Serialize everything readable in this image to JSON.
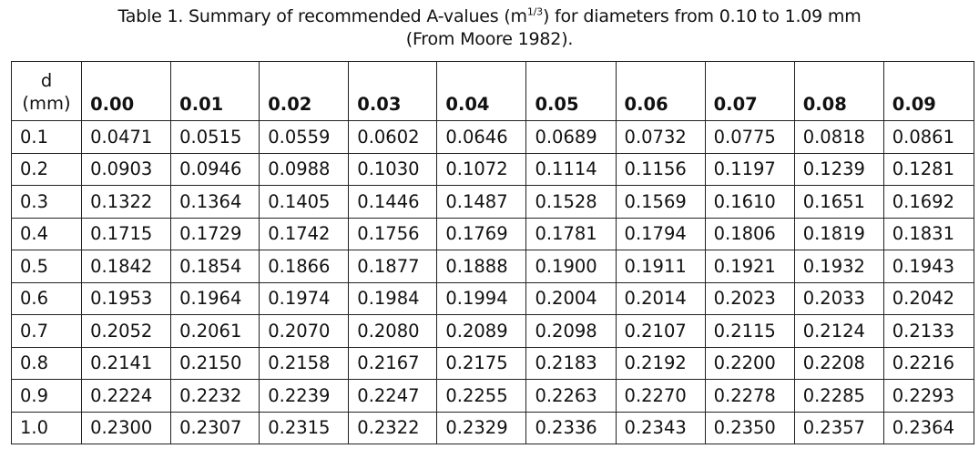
{
  "caption": {
    "line1_before": "Table 1. Summary of recommended A-values (m",
    "line1_exp": "1/3",
    "line1_after": ") for diameters from 0.10 to 1.09 mm",
    "line2": "(From Moore 1982)."
  },
  "table": {
    "corner": [
      "d",
      "(mm)"
    ],
    "columns": [
      "0.00",
      "0.01",
      "0.02",
      "0.03",
      "0.04",
      "0.05",
      "0.06",
      "0.07",
      "0.08",
      "0.09"
    ],
    "rows": [
      {
        "d": "0.1",
        "values": [
          "0.0471",
          "0.0515",
          "0.0559",
          "0.0602",
          "0.0646",
          "0.0689",
          "0.0732",
          "0.0775",
          "0.0818",
          "0.0861"
        ]
      },
      {
        "d": "0.2",
        "values": [
          "0.0903",
          "0.0946",
          "0.0988",
          "0.1030",
          "0.1072",
          "0.1114",
          "0.1156",
          "0.1197",
          "0.1239",
          "0.1281"
        ]
      },
      {
        "d": "0.3",
        "values": [
          "0.1322",
          "0.1364",
          "0.1405",
          "0.1446",
          "0.1487",
          "0.1528",
          "0.1569",
          "0.1610",
          "0.1651",
          "0.1692"
        ]
      },
      {
        "d": "0.4",
        "values": [
          "0.1715",
          "0.1729",
          "0.1742",
          "0.1756",
          "0.1769",
          "0.1781",
          "0.1794",
          "0.1806",
          "0.1819",
          "0.1831"
        ]
      },
      {
        "d": "0.5",
        "values": [
          "0.1842",
          "0.1854",
          "0.1866",
          "0.1877",
          "0.1888",
          "0.1900",
          "0.1911",
          "0.1921",
          "0.1932",
          "0.1943"
        ]
      },
      {
        "d": "0.6",
        "values": [
          "0.1953",
          "0.1964",
          "0.1974",
          "0.1984",
          "0.1994",
          "0.2004",
          "0.2014",
          "0.2023",
          "0.2033",
          "0.2042"
        ]
      },
      {
        "d": "0.7",
        "values": [
          "0.2052",
          "0.2061",
          "0.2070",
          "0.2080",
          "0.2089",
          "0.2098",
          "0.2107",
          "0.2115",
          "0.2124",
          "0.2133"
        ]
      },
      {
        "d": "0.8",
        "values": [
          "0.2141",
          "0.2150",
          "0.2158",
          "0.2167",
          "0.2175",
          "0.2183",
          "0.2192",
          "0.2200",
          "0.2208",
          "0.2216"
        ]
      },
      {
        "d": "0.9",
        "values": [
          "0.2224",
          "0.2232",
          "0.2239",
          "0.2247",
          "0.2255",
          "0.2263",
          "0.2270",
          "0.2278",
          "0.2285",
          "0.2293"
        ]
      },
      {
        "d": "1.0",
        "values": [
          "0.2300",
          "0.2307",
          "0.2315",
          "0.2322",
          "0.2329",
          "0.2336",
          "0.2343",
          "0.2350",
          "0.2357",
          "0.2364"
        ]
      }
    ]
  }
}
